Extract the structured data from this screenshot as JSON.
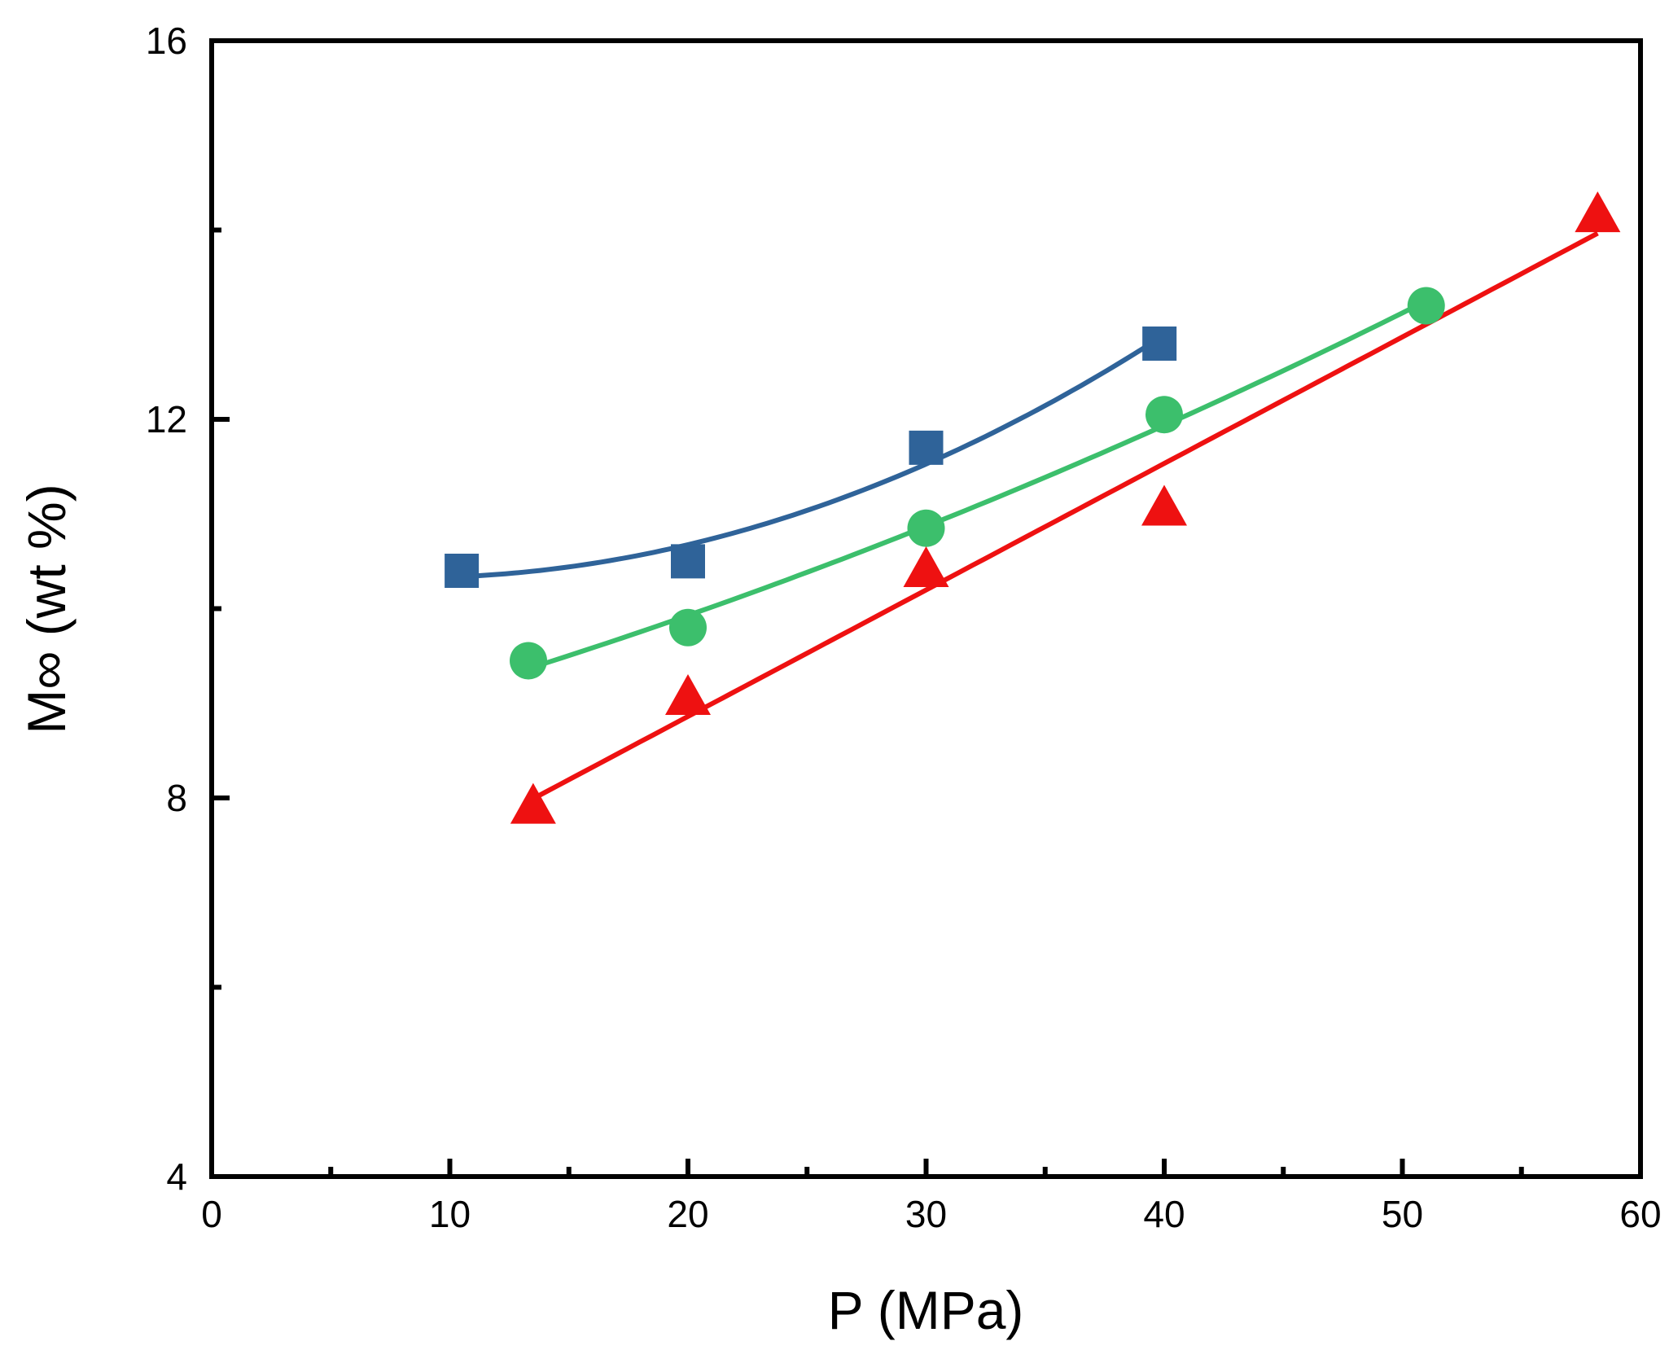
{
  "chart_data": {
    "type": "scatter",
    "title": "",
    "xlabel": "P (MPa)",
    "ylabel": "M∞ (wt %)",
    "xlim": [
      0,
      60
    ],
    "ylim": [
      4,
      16
    ],
    "xticks": [
      0,
      10,
      20,
      30,
      40,
      50,
      60
    ],
    "xtick_labels": [
      "0",
      "10",
      "20",
      "30",
      "40",
      "50",
      "60"
    ],
    "xminor": [
      5,
      15,
      25,
      35,
      45,
      55
    ],
    "yticks": [
      4,
      8,
      12,
      16
    ],
    "ytick_labels": [
      "4",
      "8",
      "12",
      "16"
    ],
    "yminor": [
      6,
      10,
      14
    ],
    "grid": false,
    "legend": "none",
    "series": [
      {
        "name": "squares",
        "marker": "square",
        "color": "#2f6399",
        "x": [
          10.5,
          20.0,
          30.0,
          39.8
        ],
        "y": [
          10.4,
          10.5,
          11.7,
          12.8
        ],
        "fit": "quadratic",
        "fit_range": [
          10.5,
          39.8
        ]
      },
      {
        "name": "circles",
        "marker": "circle",
        "color": "#3cbf6c",
        "x": [
          13.3,
          20.0,
          30.0,
          40.0,
          51.0
        ],
        "y": [
          9.45,
          9.8,
          10.85,
          12.05,
          13.2
        ],
        "fit": "quadratic",
        "fit_range": [
          13.3,
          51.0
        ]
      },
      {
        "name": "triangles",
        "marker": "triangle",
        "color": "#ee1111",
        "x": [
          13.5,
          20.0,
          30.0,
          40.0,
          58.2
        ],
        "y": [
          7.9,
          9.05,
          10.4,
          11.05,
          14.15
        ],
        "fit": "linear",
        "fit_range": [
          13.5,
          58.2
        ]
      }
    ]
  }
}
